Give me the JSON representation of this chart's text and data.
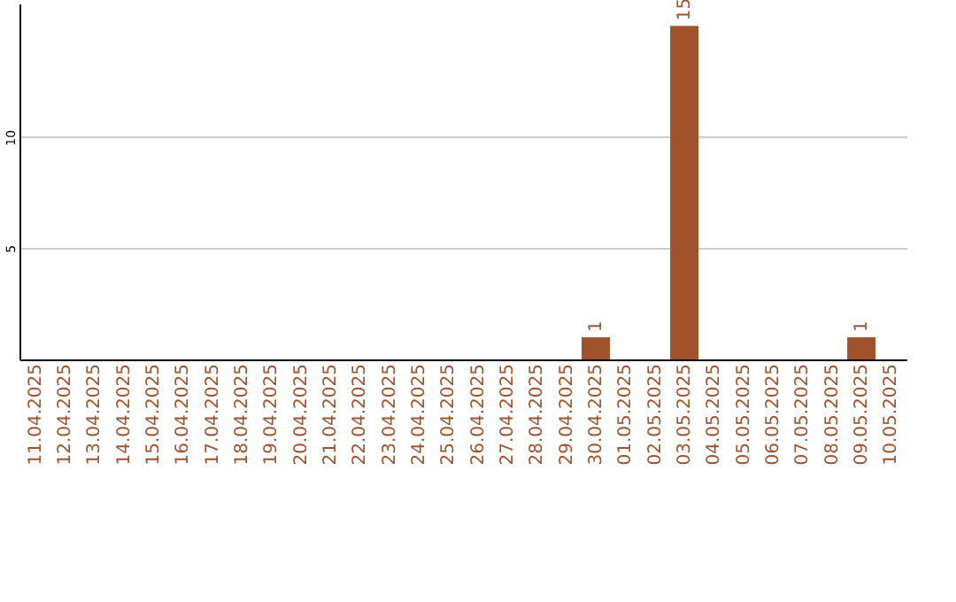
{
  "chart_data": {
    "type": "bar",
    "categories": [
      "11.04.2025",
      "12.04.2025",
      "13.04.2025",
      "14.04.2025",
      "15.04.2025",
      "16.04.2025",
      "17.04.2025",
      "18.04.2025",
      "19.04.2025",
      "20.04.2025",
      "21.04.2025",
      "22.04.2025",
      "23.04.2025",
      "24.04.2025",
      "25.04.2025",
      "26.04.2025",
      "27.04.2025",
      "28.04.2025",
      "29.04.2025",
      "30.04.2025",
      "01.05.2025",
      "02.05.2025",
      "03.05.2025",
      "04.05.2025",
      "05.05.2025",
      "06.05.2025",
      "07.05.2025",
      "08.05.2025",
      "09.05.2025",
      "10.05.2025"
    ],
    "values": [
      0,
      0,
      0,
      0,
      0,
      0,
      0,
      0,
      0,
      0,
      0,
      0,
      0,
      0,
      0,
      0,
      0,
      0,
      0,
      1,
      0,
      0,
      15,
      0,
      0,
      0,
      0,
      0,
      1,
      0
    ],
    "value_labels": [
      null,
      null,
      null,
      null,
      null,
      null,
      null,
      null,
      null,
      null,
      null,
      null,
      null,
      null,
      null,
      null,
      null,
      null,
      null,
      "1",
      null,
      null,
      "15",
      null,
      null,
      null,
      null,
      null,
      "1",
      null
    ],
    "color": "#a0522d",
    "ylim": [
      0,
      16
    ],
    "yticks": [
      5,
      10
    ],
    "grid": "y"
  }
}
